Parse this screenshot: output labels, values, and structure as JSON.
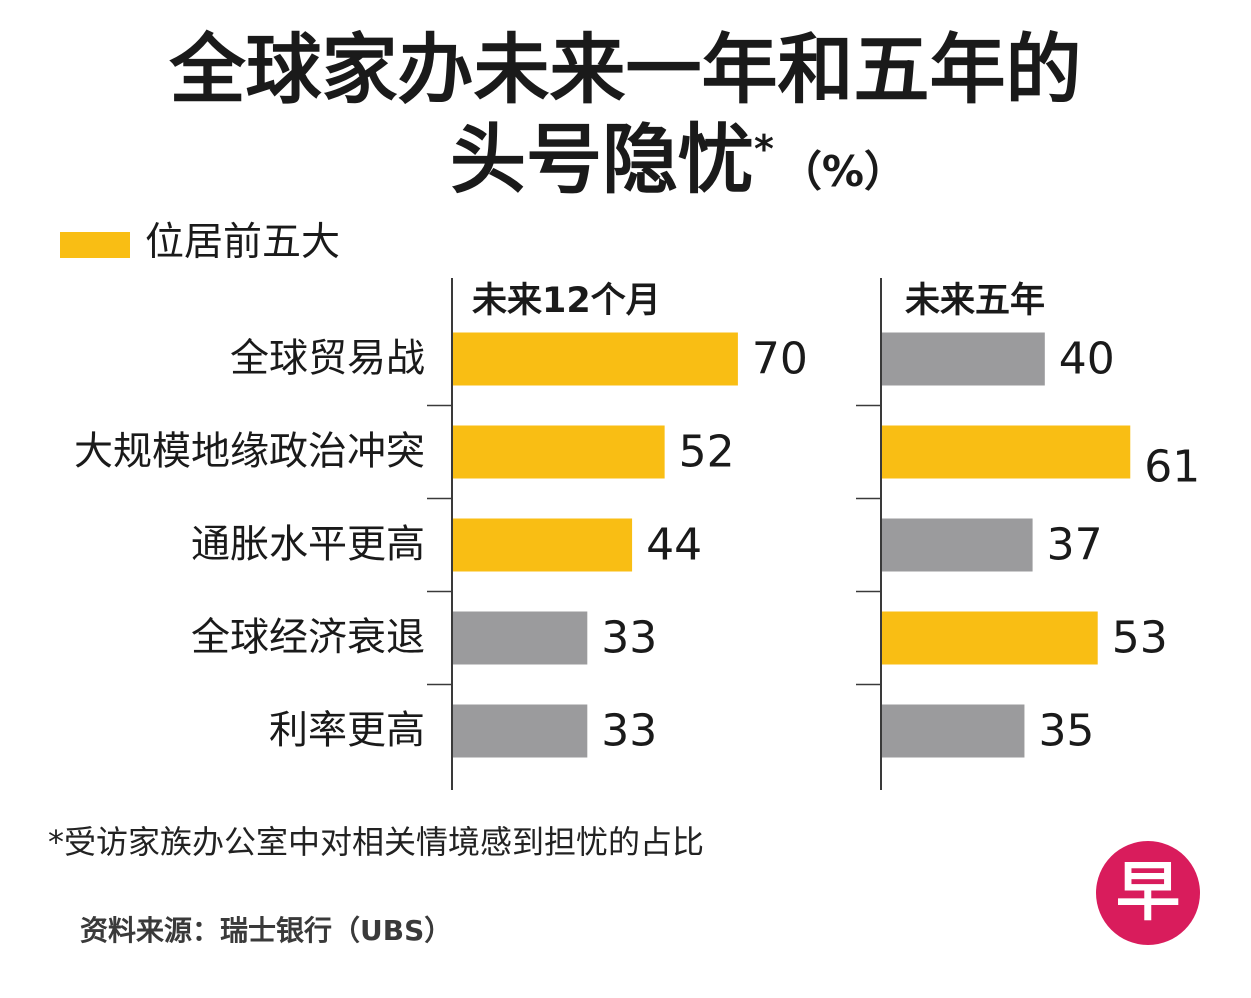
{
  "chart_data": {
    "type": "bar",
    "orientation": "horizontal",
    "title": {
      "line1": "全球家办未来一年和五年的",
      "line2": "头号隐忧",
      "asterisk": "*",
      "unit": "（%）"
    },
    "legend": [
      {
        "label": "位居前五大",
        "color": "#F9BE14"
      }
    ],
    "colors": {
      "top_five": "#F9BE14",
      "other": "#9B9B9D",
      "text": "#1A1A1A",
      "axis": "#3A3A3A"
    },
    "categories": [
      "全球贸易战",
      "大规模地缘政治冲突",
      "通胀水平更高",
      "全球经济衰退",
      "利率更高"
    ],
    "series": [
      {
        "name": "未来12个月",
        "values": [
          70,
          52,
          44,
          33,
          33
        ],
        "top_five": [
          true,
          true,
          true,
          false,
          false
        ]
      },
      {
        "name": "未来五年",
        "values": [
          40,
          61,
          37,
          53,
          35
        ],
        "top_five": [
          false,
          true,
          false,
          true,
          false
        ]
      }
    ],
    "grid": false
  },
  "footnote": "*受访家族办公室中对相关情境感到担忧的占比",
  "source": "资料来源：瑞士银行（UBS）",
  "logo": {
    "text": "早",
    "color": "#D91C5C"
  }
}
